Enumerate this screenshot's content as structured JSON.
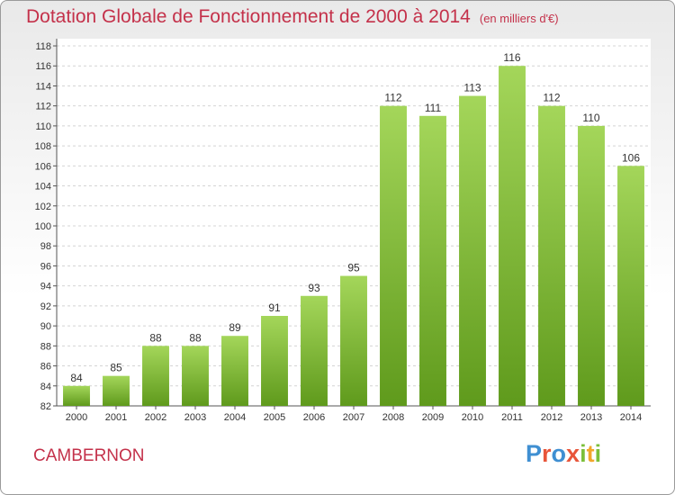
{
  "header": {
    "title": "Dotation Globale de Fonctionnement de 2000 à 2014",
    "unit": "(en milliers d'€)"
  },
  "commune": "CAMBERNON",
  "logo": {
    "text": "Proxiti",
    "letters": [
      {
        "char": "P",
        "color": "#3f8fd2"
      },
      {
        "char": "r",
        "color": "#e8553a"
      },
      {
        "char": "o",
        "color": "#3f8fd2"
      },
      {
        "char": "x",
        "color": "#e8553a"
      },
      {
        "char": "i",
        "color": "#7cbf3a"
      },
      {
        "char": "t",
        "color": "#f2a62b"
      },
      {
        "char": "i",
        "color": "#7cbf3a"
      }
    ]
  },
  "chart_data": {
    "type": "bar",
    "title": "Dotation Globale de Fonctionnement de 2000 à 2014",
    "subtitle": "(en milliers d'€)",
    "categories": [
      "2000",
      "2001",
      "2002",
      "2003",
      "2004",
      "2005",
      "2006",
      "2007",
      "2008",
      "2009",
      "2010",
      "2011",
      "2012",
      "2013",
      "2014"
    ],
    "values": [
      84,
      85,
      88,
      88,
      89,
      91,
      93,
      95,
      112,
      111,
      113,
      116,
      112,
      110,
      106
    ],
    "ylim": [
      82,
      118
    ],
    "yticks": [
      82,
      84,
      86,
      88,
      90,
      92,
      94,
      96,
      98,
      100,
      102,
      104,
      106,
      108,
      110,
      112,
      114,
      116,
      118
    ],
    "grid": true,
    "bar_color": "#7cbf2a",
    "bar_color_light": "#a4d65a"
  }
}
